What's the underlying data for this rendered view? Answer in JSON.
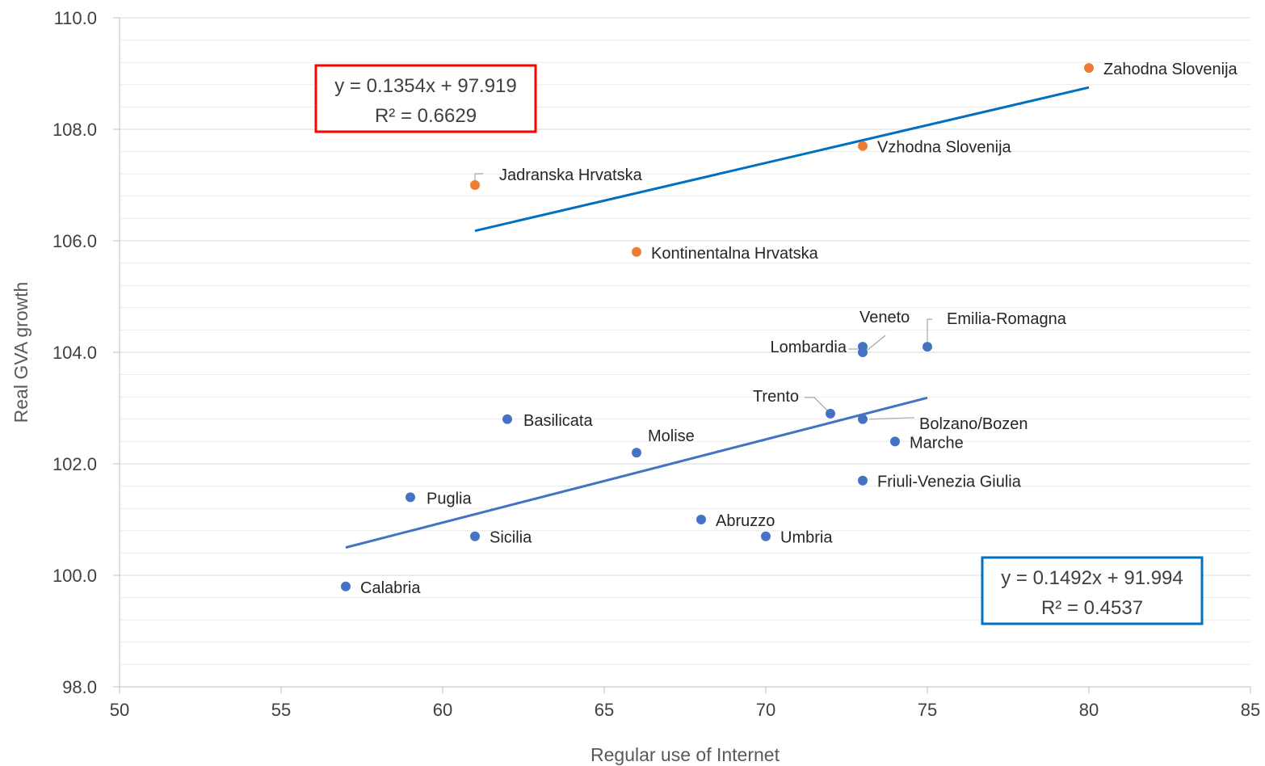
{
  "chart_data": {
    "type": "scatter",
    "xlabel": "Regular use of Internet",
    "ylabel": "Real GVA growth",
    "xlim": [
      50,
      85
    ],
    "ylim": [
      98,
      110
    ],
    "x_ticks": [
      "50",
      "55",
      "60",
      "65",
      "70",
      "75",
      "80",
      "85"
    ],
    "y_ticks": [
      "98.0",
      "100.0",
      "102.0",
      "104.0",
      "106.0",
      "108.0",
      "110.0"
    ],
    "grid": "horizontal",
    "series": [
      {
        "color": "#4472C4",
        "points": [
          {
            "label": "Calabria",
            "x": 57,
            "y": 99.8
          },
          {
            "label": "Puglia",
            "x": 59,
            "y": 101.4
          },
          {
            "label": "Sicilia",
            "x": 61,
            "y": 100.7
          },
          {
            "label": "Basilicata",
            "x": 62,
            "y": 102.8
          },
          {
            "label": "Molise",
            "x": 66,
            "y": 102.2
          },
          {
            "label": "Abruzzo",
            "x": 68,
            "y": 101.0
          },
          {
            "label": "Umbria",
            "x": 70,
            "y": 100.7
          },
          {
            "label": "Trento",
            "x": 72,
            "y": 102.9
          },
          {
            "label": "Bolzano/Bozen",
            "x": 73,
            "y": 102.8
          },
          {
            "label": "Friuli-Venezia Giulia",
            "x": 73,
            "y": 101.7
          },
          {
            "label": "Lombardia",
            "x": 73,
            "y": 104.0
          },
          {
            "label": "Veneto",
            "x": 73,
            "y": 104.1
          },
          {
            "label": "Marche",
            "x": 74,
            "y": 102.4
          },
          {
            "label": "Emilia-Romagna",
            "x": 75,
            "y": 104.1
          }
        ],
        "trendline": {
          "slope": 0.1492,
          "intercept": 91.994,
          "x_range": [
            57,
            75
          ],
          "color": "#4472C4"
        },
        "equation": "y = 0.1492x + 91.994",
        "r2": "R² = 0.4537",
        "equation_box_color": "#0070C0"
      },
      {
        "color": "#ED7D31",
        "points": [
          {
            "label": "Jadranska Hrvatska",
            "x": 61,
            "y": 107.0
          },
          {
            "label": "Kontinentalna Hrvatska",
            "x": 66,
            "y": 105.8
          },
          {
            "label": "Vzhodna Slovenija",
            "x": 73,
            "y": 107.7
          },
          {
            "label": "Zahodna Slovenija",
            "x": 80,
            "y": 109.1
          }
        ],
        "trendline": {
          "slope": 0.1354,
          "intercept": 97.919,
          "x_range": [
            61,
            80
          ],
          "color": "#0070C0"
        },
        "equation": "y = 0.1354x + 97.919",
        "r2": "R² = 0.6629",
        "equation_box_color": "#FF0000"
      }
    ]
  }
}
